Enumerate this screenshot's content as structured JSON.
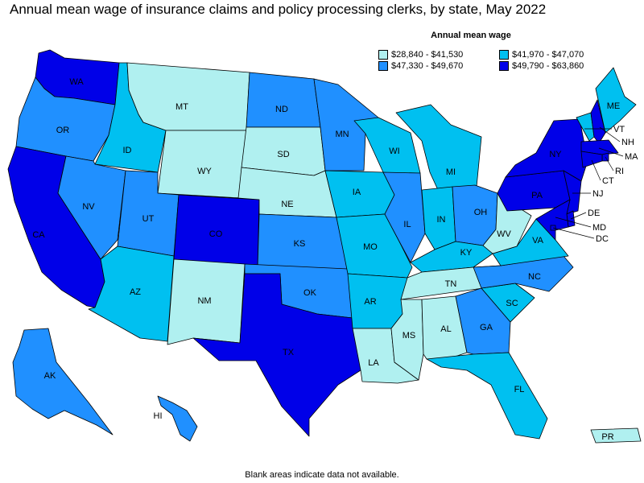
{
  "title": "Annual mean wage of insurance claims and policy processing clerks, by state, May 2022",
  "legend": {
    "title": "Annual mean wage",
    "items": [
      {
        "range": "$28,840 - $41,530",
        "color": "#b0f0f0"
      },
      {
        "range": "$41,970 - $47,070",
        "color": "#00c0f0"
      },
      {
        "range": "$47,330 - $49,670",
        "color": "#2090ff"
      },
      {
        "range": "$49,790 - $63,860",
        "color": "#0000e8"
      }
    ]
  },
  "footnote": "Blank areas indicate data not available.",
  "states": [
    {
      "abbr": "WA",
      "class": 3
    },
    {
      "abbr": "OR",
      "class": 2
    },
    {
      "abbr": "CA",
      "class": 3
    },
    {
      "abbr": "ID",
      "class": 1
    },
    {
      "abbr": "NV",
      "class": 2
    },
    {
      "abbr": "MT",
      "class": 0
    },
    {
      "abbr": "WY",
      "class": 0
    },
    {
      "abbr": "UT",
      "class": 2
    },
    {
      "abbr": "AZ",
      "class": 1
    },
    {
      "abbr": "CO",
      "class": 3
    },
    {
      "abbr": "NM",
      "class": 0
    },
    {
      "abbr": "ND",
      "class": 2
    },
    {
      "abbr": "SD",
      "class": 0
    },
    {
      "abbr": "NE",
      "class": 0
    },
    {
      "abbr": "KS",
      "class": 2
    },
    {
      "abbr": "OK",
      "class": 2
    },
    {
      "abbr": "TX",
      "class": 3
    },
    {
      "abbr": "MN",
      "class": 2
    },
    {
      "abbr": "IA",
      "class": 1
    },
    {
      "abbr": "MO",
      "class": 1
    },
    {
      "abbr": "AR",
      "class": 1
    },
    {
      "abbr": "LA",
      "class": 0
    },
    {
      "abbr": "WI",
      "class": 1
    },
    {
      "abbr": "IL",
      "class": 2
    },
    {
      "abbr": "MI",
      "class": 1
    },
    {
      "abbr": "IN",
      "class": 1
    },
    {
      "abbr": "OH",
      "class": 2
    },
    {
      "abbr": "KY",
      "class": 1
    },
    {
      "abbr": "TN",
      "class": 0
    },
    {
      "abbr": "MS",
      "class": 0
    },
    {
      "abbr": "AL",
      "class": 0
    },
    {
      "abbr": "GA",
      "class": 2
    },
    {
      "abbr": "FL",
      "class": 1
    },
    {
      "abbr": "SC",
      "class": 1
    },
    {
      "abbr": "NC",
      "class": 2
    },
    {
      "abbr": "VA",
      "class": 1
    },
    {
      "abbr": "WV",
      "class": 0
    },
    {
      "abbr": "PA",
      "class": 3
    },
    {
      "abbr": "NY",
      "class": 3
    },
    {
      "abbr": "ME",
      "class": 1
    },
    {
      "abbr": "VT",
      "class": 1
    },
    {
      "abbr": "NH",
      "class": 3
    },
    {
      "abbr": "MA",
      "class": 3
    },
    {
      "abbr": "RI",
      "class": 3
    },
    {
      "abbr": "CT",
      "class": 3
    },
    {
      "abbr": "NJ",
      "class": 3
    },
    {
      "abbr": "DE",
      "class": 3
    },
    {
      "abbr": "MD",
      "class": 3
    },
    {
      "abbr": "DC",
      "class": 3
    },
    {
      "abbr": "AK",
      "class": 2
    },
    {
      "abbr": "HI",
      "class": 2
    },
    {
      "abbr": "PR",
      "class": 0
    }
  ]
}
